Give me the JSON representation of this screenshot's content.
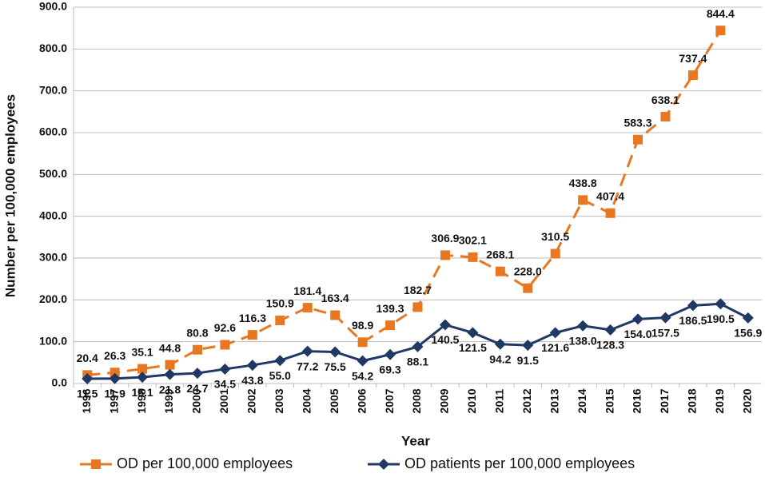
{
  "chart_data": {
    "type": "line",
    "x_label": "Year",
    "y_label": "Number per 100,000 employees",
    "categories": [
      "1996",
      "1997",
      "1998",
      "1999",
      "2000",
      "2001",
      "2002",
      "2003",
      "2004",
      "2005",
      "2006",
      "2007",
      "2008",
      "2009",
      "2010",
      "2011",
      "2012",
      "2013",
      "2014",
      "2015",
      "2016",
      "2017",
      "2018",
      "2019",
      "2020"
    ],
    "series": [
      {
        "name": "OD per 100,000 employees",
        "color": "#e87722",
        "dashed": true,
        "marker": "square",
        "values": [
          20.4,
          26.3,
          35.1,
          44.8,
          80.8,
          92.6,
          116.3,
          150.9,
          181.4,
          163.4,
          98.9,
          139.3,
          182.7,
          306.9,
          302.1,
          268.1,
          228.0,
          310.5,
          438.8,
          407.4,
          583.3,
          638.1,
          737.4,
          844.4,
          null
        ],
        "value_labels": [
          "20.4",
          "26.3",
          "35.1",
          "44.8",
          "80.8",
          "92.6",
          "116.3",
          "150.9",
          "181.4",
          "163.4",
          "98.9",
          "139.3",
          "182.7",
          "306.9",
          "302.1",
          "268.1",
          "228.0",
          "310.5",
          "438.8",
          "407.4",
          "583.3",
          "638.1",
          "737.4",
          "844.4",
          null
        ]
      },
      {
        "name": "OD patients per 100,000 employees",
        "color": "#1f3864",
        "dashed": false,
        "marker": "diamond",
        "values": [
          11.5,
          11.9,
          15.1,
          21.8,
          24.7,
          34.5,
          43.8,
          55.0,
          77.2,
          75.5,
          54.2,
          69.3,
          88.1,
          140.5,
          121.5,
          94.2,
          91.5,
          121.6,
          138.0,
          128.3,
          154.0,
          157.5,
          186.5,
          190.5,
          156.9
        ],
        "value_labels": [
          "11.5",
          "11.9",
          "15.1",
          "21.8",
          "24.7",
          "34.5",
          "43.8",
          "55.0",
          "77.2",
          "75.5",
          "54.2",
          "69.3",
          "88.1",
          "140.5",
          "121.5",
          "94.2",
          "91.5",
          "121.6",
          "138.0",
          "128.3",
          "154.0",
          "157.5",
          "186.5",
          "190.5",
          "156.9"
        ]
      }
    ],
    "ylim": [
      0,
      900
    ],
    "yticks": [
      {
        "value": 0,
        "label": "0.0"
      },
      {
        "value": 100,
        "label": "100.0"
      },
      {
        "value": 200,
        "label": "200.0"
      },
      {
        "value": 300,
        "label": "300.0"
      },
      {
        "value": 400,
        "label": "400.0"
      },
      {
        "value": 500,
        "label": "500.0"
      },
      {
        "value": 600,
        "label": "600.0"
      },
      {
        "value": 700,
        "label": "700.0"
      },
      {
        "value": 800,
        "label": "800.0"
      },
      {
        "value": 900,
        "label": "900.0"
      }
    ],
    "grid": true,
    "legend": "bottom"
  }
}
